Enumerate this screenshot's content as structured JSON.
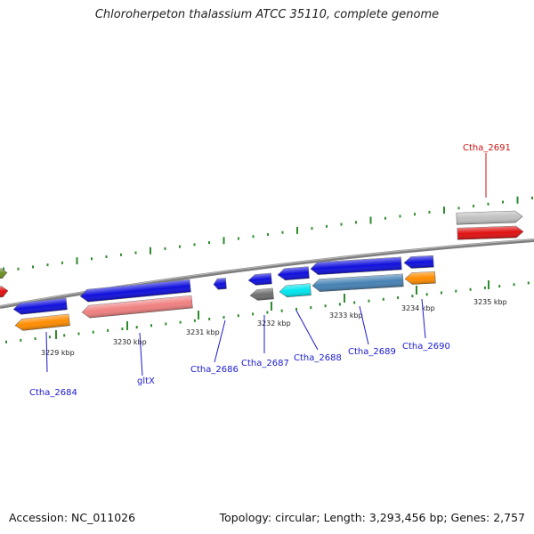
{
  "title": "Chloroherpeton thalassium ATCC 35110, complete genome",
  "footer": {
    "accession": "Accession: NC_011026",
    "summary": "Topology: circular; Length: 3,293,456 bp; Genes: 2,757"
  },
  "colors": {
    "backbone": "#7f7f7f",
    "tick": "#2e8b2e",
    "label": "#1a1acd",
    "label_highlight": "#cc1111"
  },
  "ticks": [
    {
      "label": "3229 kbp"
    },
    {
      "label": "3230 kbp"
    },
    {
      "label": "3231 kbp"
    },
    {
      "label": "3232 kbp"
    },
    {
      "label": "3233 kbp"
    },
    {
      "label": "3234 kbp"
    },
    {
      "label": "3235 kbp"
    }
  ],
  "genes": [
    {
      "label": "",
      "color": "#6b8e23",
      "strand": "forward"
    },
    {
      "label": "",
      "color": "#e01010",
      "strand": "forward"
    },
    {
      "label": "Ctha_2684",
      "color": "#1010dd",
      "strand": "reverse"
    },
    {
      "label": "",
      "color": "#ff8c00",
      "strand": "reverse"
    },
    {
      "label": "gltX",
      "color": "#1010dd",
      "strand": "reverse"
    },
    {
      "label": "",
      "color": "#f08080",
      "strand": "reverse"
    },
    {
      "label": "Ctha_2686",
      "color": "#1010dd",
      "strand": "reverse"
    },
    {
      "label": "Ctha_2687",
      "color": "#1010dd",
      "strand": "reverse"
    },
    {
      "label": "",
      "color": "#6e6e6e",
      "strand": "reverse"
    },
    {
      "label": "Ctha_2688",
      "color": "#1010dd",
      "strand": "reverse"
    },
    {
      "label": "",
      "color": "#00e5ee",
      "strand": "reverse"
    },
    {
      "label": "Ctha_2689",
      "color": "#1010dd",
      "strand": "reverse"
    },
    {
      "label": "",
      "color": "#4682b4",
      "strand": "reverse"
    },
    {
      "label": "Ctha_2690",
      "color": "#1010dd",
      "strand": "reverse"
    },
    {
      "label": "",
      "color": "#ff8c00",
      "strand": "reverse"
    },
    {
      "label": "Ctha_2691",
      "color": "#c0c0c0",
      "strand": "forward"
    },
    {
      "label": "",
      "color": "#e01010",
      "strand": "forward"
    }
  ]
}
